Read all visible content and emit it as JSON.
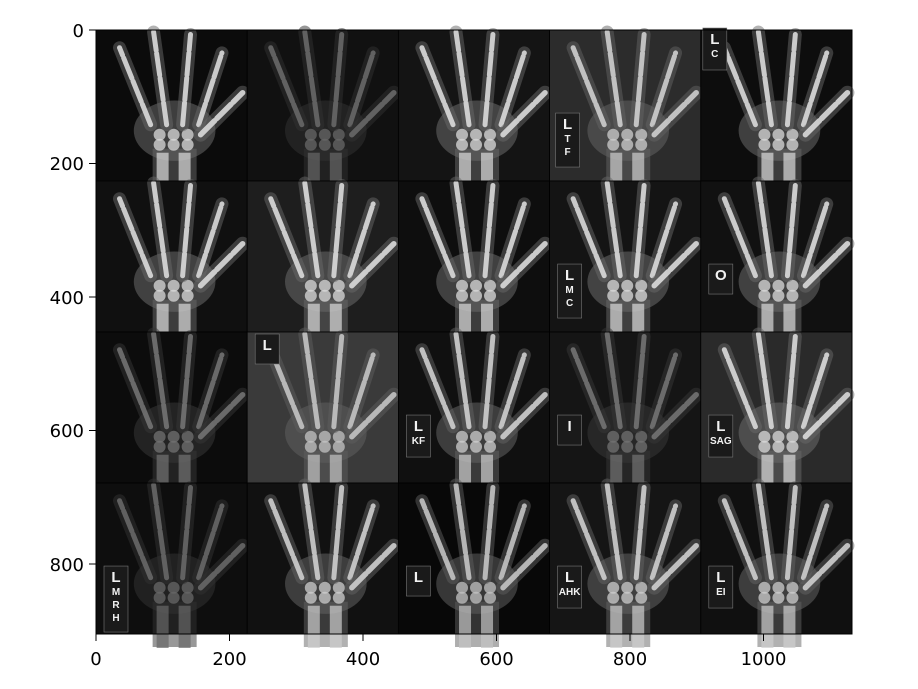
{
  "axes": {
    "x_ticks": [
      "0",
      "200",
      "400",
      "600",
      "800",
      "1000"
    ],
    "y_ticks": [
      "0",
      "200",
      "400",
      "600",
      "800"
    ]
  },
  "image_grid": {
    "description": "5x4 montage of left-hand radiographs (bone-age X-rays)",
    "rows": [
      [
        "",
        "",
        "",
        "L T F",
        "L C"
      ],
      [
        "",
        "",
        "",
        "L M C",
        "O"
      ],
      [
        "",
        "L",
        "L KF",
        "I",
        "L SAG"
      ],
      [
        "L M R H",
        "",
        "L",
        "L AHK",
        "L EI"
      ]
    ]
  }
}
